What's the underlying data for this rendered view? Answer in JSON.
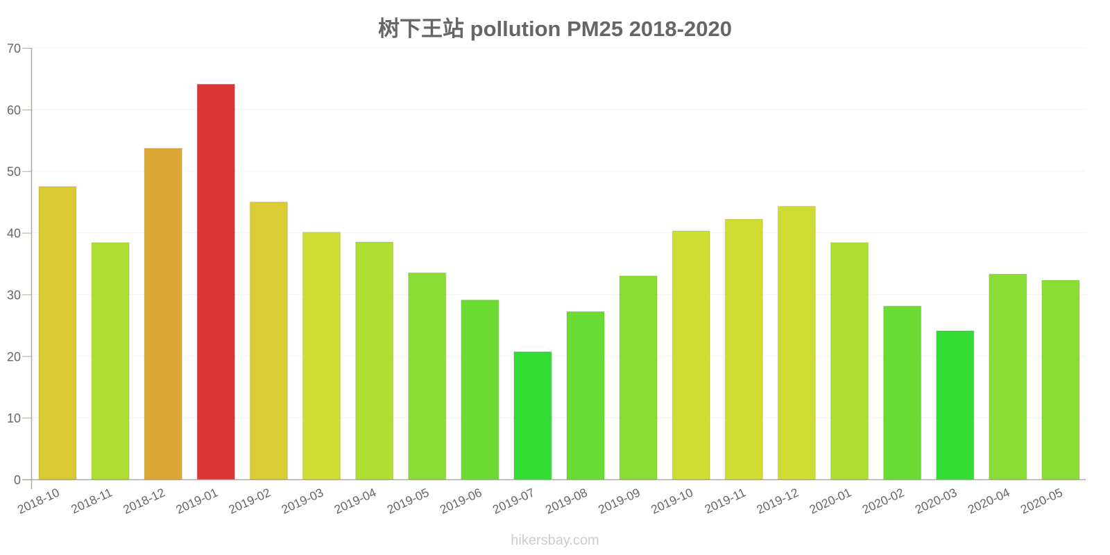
{
  "title": "树下王站 pollution PM25 2018-2020",
  "watermark": "hikersbay.com",
  "chart_data": {
    "type": "bar",
    "title": "树下王站 pollution PM25 2018-2020",
    "xlabel": "",
    "ylabel": "",
    "ylim": [
      0,
      70
    ],
    "yticks": [
      0,
      10,
      20,
      30,
      40,
      50,
      60,
      70
    ],
    "grid": true,
    "legend": null,
    "categories": [
      "2018-10",
      "2018-11",
      "2018-12",
      "2019-01",
      "2019-02",
      "2019-03",
      "2019-04",
      "2019-05",
      "2019-06",
      "2019-07",
      "2019-08",
      "2019-09",
      "2019-10",
      "2019-11",
      "2019-12",
      "2020-01",
      "2020-02",
      "2020-03",
      "2020-04",
      "2020-05"
    ],
    "values": [
      47.5,
      38.4,
      53.7,
      64.1,
      45.0,
      40.1,
      38.5,
      33.5,
      29.1,
      20.7,
      27.2,
      33.0,
      40.3,
      42.2,
      44.3,
      38.4,
      28.1,
      24.1,
      33.3,
      32.3
    ],
    "colors": [
      "#dbc934",
      "#aedd34",
      "#dca735",
      "#db3535",
      "#dbcb34",
      "#cedc34",
      "#aede34",
      "#8bdc34",
      "#6cdc35",
      "#34dc35",
      "#6bdc35",
      "#8bdc34",
      "#cedd34",
      "#cedc34",
      "#cedc34",
      "#aedd34",
      "#6bdc35",
      "#34dc35",
      "#8bdc34",
      "#8bdc34"
    ]
  }
}
